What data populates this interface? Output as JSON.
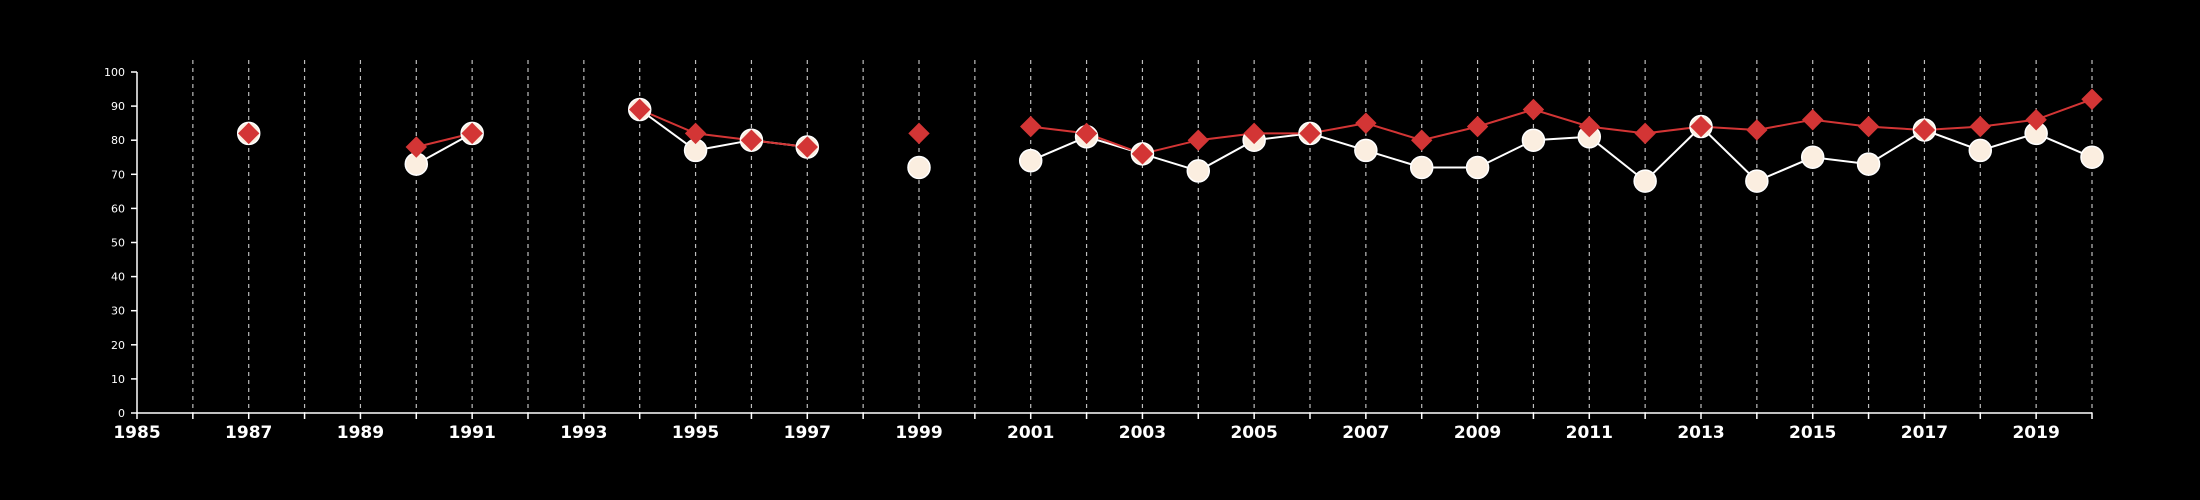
{
  "chart_data": {
    "type": "line",
    "title": "",
    "xlabel": "",
    "ylabel": "",
    "xlim": [
      1985,
      2020
    ],
    "ylim": [
      0,
      100
    ],
    "x_ticks": [
      1985,
      1986,
      1987,
      1988,
      1989,
      1990,
      1991,
      1992,
      1993,
      1994,
      1995,
      1996,
      1997,
      1998,
      1999,
      2000,
      2001,
      2002,
      2003,
      2004,
      2005,
      2006,
      2007,
      2008,
      2009,
      2010,
      2011,
      2012,
      2013,
      2014,
      2015,
      2016,
      2017,
      2018,
      2019,
      2020
    ],
    "x_tick_labels": [
      "1985",
      "",
      "1987",
      "",
      "1989",
      "",
      "1991",
      "",
      "1993",
      "",
      "1995",
      "",
      "1997",
      "",
      "1999",
      "",
      "2001",
      "",
      "2003",
      "",
      "2005",
      "",
      "2007",
      "",
      "2009",
      "",
      "2011",
      "",
      "2013",
      "",
      "2015",
      "",
      "2017",
      "",
      "2019",
      ""
    ],
    "y_ticks": [
      0,
      10,
      20,
      30,
      40,
      50,
      60,
      70,
      80,
      90,
      100
    ],
    "grid": "vertical dashed lines at every year",
    "legend": "none",
    "background": "#000000",
    "series": [
      {
        "marker": "circle",
        "line_color": "#ffffff",
        "marker_color": "#fbeee0",
        "points": [
          [
            1987,
            82
          ],
          [
            1990,
            73
          ],
          [
            1991,
            82
          ],
          [
            1994,
            89
          ],
          [
            1995,
            77
          ],
          [
            1996,
            80
          ],
          [
            1997,
            78
          ],
          [
            1999,
            72
          ],
          [
            2001,
            74
          ],
          [
            2002,
            81
          ],
          [
            2003,
            76
          ],
          [
            2004,
            71
          ],
          [
            2005,
            80
          ],
          [
            2006,
            82
          ],
          [
            2007,
            77
          ],
          [
            2008,
            72
          ],
          [
            2009,
            72
          ],
          [
            2010,
            80
          ],
          [
            2011,
            81
          ],
          [
            2012,
            68
          ],
          [
            2013,
            84
          ],
          [
            2014,
            68
          ],
          [
            2015,
            75
          ],
          [
            2016,
            73
          ],
          [
            2017,
            83
          ],
          [
            2018,
            77
          ],
          [
            2019,
            82
          ],
          [
            2020,
            75
          ]
        ],
        "segments": [
          [
            1990,
            1991
          ],
          [
            1994,
            1997
          ],
          [
            2001,
            2020
          ]
        ]
      },
      {
        "marker": "diamond",
        "line_color": "#d33535",
        "marker_color": "#d33535",
        "points": [
          [
            1987,
            82
          ],
          [
            1990,
            78
          ],
          [
            1991,
            82
          ],
          [
            1994,
            89
          ],
          [
            1995,
            82
          ],
          [
            1996,
            80
          ],
          [
            1997,
            78
          ],
          [
            1999,
            82
          ],
          [
            2001,
            84
          ],
          [
            2002,
            82
          ],
          [
            2003,
            76
          ],
          [
            2004,
            80
          ],
          [
            2005,
            82
          ],
          [
            2006,
            82
          ],
          [
            2007,
            85
          ],
          [
            2008,
            80
          ],
          [
            2009,
            84
          ],
          [
            2010,
            89
          ],
          [
            2011,
            84
          ],
          [
            2012,
            82
          ],
          [
            2013,
            84
          ],
          [
            2014,
            83
          ],
          [
            2015,
            86
          ],
          [
            2016,
            84
          ],
          [
            2017,
            83
          ],
          [
            2018,
            84
          ],
          [
            2019,
            86
          ],
          [
            2020,
            92
          ]
        ],
        "segments": [
          [
            1990,
            1991
          ],
          [
            1994,
            1997
          ],
          [
            2001,
            2020
          ]
        ]
      }
    ]
  }
}
